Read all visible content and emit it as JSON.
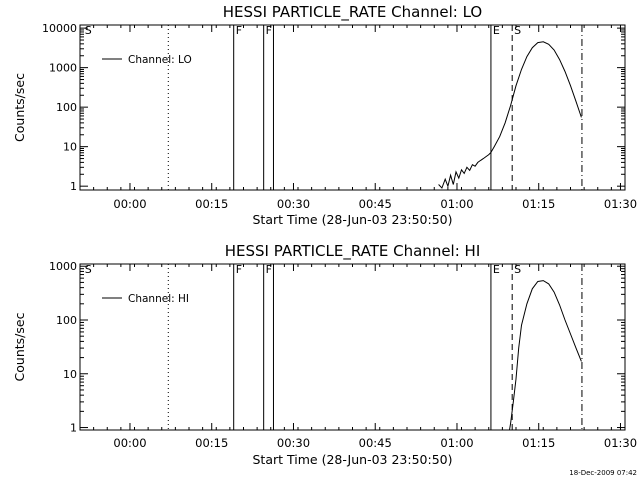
{
  "chart_data": [
    {
      "type": "line",
      "title": "HESSI PARTICLE_RATE Channel: LO",
      "xlabel": "Start Time (28-Jun-03 23:50:50)",
      "ylabel": "Counts/sec",
      "x_tick_labels": [
        "00:00",
        "00:15",
        "00:30",
        "00:45",
        "01:00",
        "01:15",
        "01:30"
      ],
      "x_tick_values_min": [
        9.17,
        24.17,
        39.17,
        54.17,
        69.17,
        84.17,
        99.17
      ],
      "xlim_min": [
        0,
        100
      ],
      "y_scale": "log",
      "y_tick_labels": [
        "1",
        "10",
        "100",
        "1000",
        "10000"
      ],
      "y_tick_values": [
        1,
        10,
        100,
        1000,
        10000
      ],
      "ylim": [
        0.8,
        12000
      ],
      "legend": {
        "placement": "top-left",
        "entries": [
          "Channel: LO"
        ]
      },
      "flags": [
        {
          "label": "S",
          "x_min": 0.5
        },
        {
          "label": "F",
          "x_min": 28.2
        },
        {
          "label": "F",
          "x_min": 33.7
        },
        {
          "label": "E",
          "x_min": 75.4
        },
        {
          "label": "S",
          "x_min": 79.3
        }
      ],
      "solid_lines_x_min": [
        28.2,
        33.7,
        35.5,
        75.4
      ],
      "dotted_lines_x_min": [
        16.2
      ],
      "dashed_lines_x_min": [
        79.3
      ],
      "dashdot_lines_x_min": [
        92.1
      ],
      "series": [
        {
          "x": [
            65.8,
            66.4,
            67.0,
            67.5,
            68.0,
            68.5,
            69.0,
            69.5,
            70.0,
            70.5,
            71.0,
            71.5,
            72.0,
            72.5,
            73.0,
            73.5,
            74.0,
            74.5,
            75.0,
            75.4,
            76.0,
            77.0,
            78.0,
            79.0,
            80.0,
            81.0,
            82.0,
            83.0,
            84.0,
            85.0,
            86.0,
            87.0,
            88.0,
            89.0,
            90.0,
            91.0,
            92.0
          ],
          "y": [
            1.1,
            0.9,
            1.5,
            1.0,
            1.9,
            1.1,
            2.3,
            1.6,
            2.6,
            2.1,
            3.0,
            2.5,
            3.5,
            3.2,
            4.0,
            4.5,
            5.0,
            5.6,
            6.3,
            7.1,
            10.0,
            18,
            40,
            110,
            350,
            900,
            1900,
            3200,
            4300,
            4500,
            3900,
            2800,
            1600,
            800,
            350,
            140,
            55
          ]
        }
      ]
    },
    {
      "type": "line",
      "title": "HESSI PARTICLE_RATE Channel: HI",
      "xlabel": "Start Time (28-Jun-03 23:50:50)",
      "ylabel": "Counts/sec",
      "x_tick_labels": [
        "00:00",
        "00:15",
        "00:30",
        "00:45",
        "01:00",
        "01:15",
        "01:30"
      ],
      "x_tick_values_min": [
        9.17,
        24.17,
        39.17,
        54.17,
        69.17,
        84.17,
        99.17
      ],
      "xlim_min": [
        0,
        100
      ],
      "y_scale": "log",
      "y_tick_labels": [
        "1",
        "10",
        "100",
        "1000"
      ],
      "y_tick_values": [
        1,
        10,
        100,
        1000
      ],
      "ylim": [
        0.9,
        1100
      ],
      "legend": {
        "placement": "top-left",
        "entries": [
          "Channel: HI"
        ]
      },
      "flags": [
        {
          "label": "S",
          "x_min": 0.5
        },
        {
          "label": "F",
          "x_min": 28.2
        },
        {
          "label": "F",
          "x_min": 33.7
        },
        {
          "label": "E",
          "x_min": 75.4
        },
        {
          "label": "S",
          "x_min": 79.3
        }
      ],
      "solid_lines_x_min": [
        28.2,
        33.7,
        35.5,
        75.4
      ],
      "dotted_lines_x_min": [
        16.2
      ],
      "dashed_lines_x_min": [
        79.3
      ],
      "dashdot_lines_x_min": [
        92.1
      ],
      "series": [
        {
          "x": [
            78.8,
            79.0,
            79.5,
            80.0,
            80.5,
            81.0,
            82.0,
            83.0,
            84.0,
            85.0,
            86.0,
            87.0,
            88.0,
            89.0,
            90.0,
            91.0,
            92.0
          ],
          "y": [
            0.9,
            1.2,
            3,
            8,
            30,
            80,
            200,
            380,
            520,
            540,
            470,
            330,
            190,
            100,
            55,
            30,
            17
          ]
        }
      ]
    }
  ],
  "footer": {
    "timestamp": "18-Dec-2009 07:42"
  }
}
